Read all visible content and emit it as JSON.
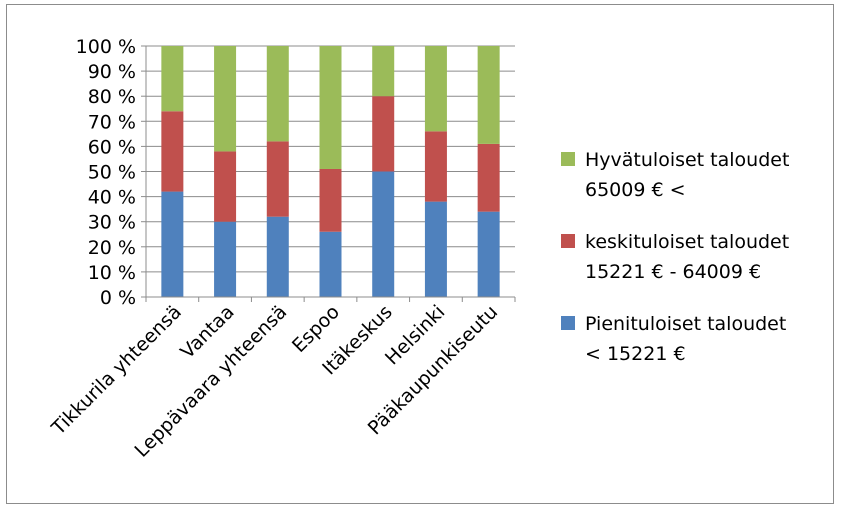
{
  "chart_data": {
    "type": "bar",
    "stacked": true,
    "percent": true,
    "categories": [
      "Tikkurila yhteensä",
      "Vantaa",
      "Leppävaara yhteensä",
      "Espoo",
      "Itäkeskus",
      "Helsinki",
      "Pääkaupunkiseutu"
    ],
    "series": [
      {
        "name_lines": [
          "Pienituloiset taloudet",
          "< 15221 €"
        ],
        "color": "#4f81bd",
        "values": [
          42,
          30,
          32,
          26,
          50,
          38,
          34
        ]
      },
      {
        "name_lines": [
          "keskituloiset taloudet",
          "15221 € - 64009 €"
        ],
        "color": "#c0504d",
        "values": [
          32,
          28,
          30,
          25,
          30,
          28,
          27
        ]
      },
      {
        "name_lines": [
          "Hyvätuloiset taloudet",
          "65009 € <"
        ],
        "color": "#9bbb59",
        "values": [
          26,
          42,
          38,
          49,
          20,
          34,
          39
        ]
      }
    ],
    "y_ticks": [
      "0 %",
      "10 %",
      "20 %",
      "30 %",
      "40 %",
      "50 %",
      "60 %",
      "70 %",
      "80 %",
      "90 %",
      "100 %"
    ],
    "ylim": [
      0,
      100
    ],
    "grid": true,
    "legend_position": "right"
  }
}
